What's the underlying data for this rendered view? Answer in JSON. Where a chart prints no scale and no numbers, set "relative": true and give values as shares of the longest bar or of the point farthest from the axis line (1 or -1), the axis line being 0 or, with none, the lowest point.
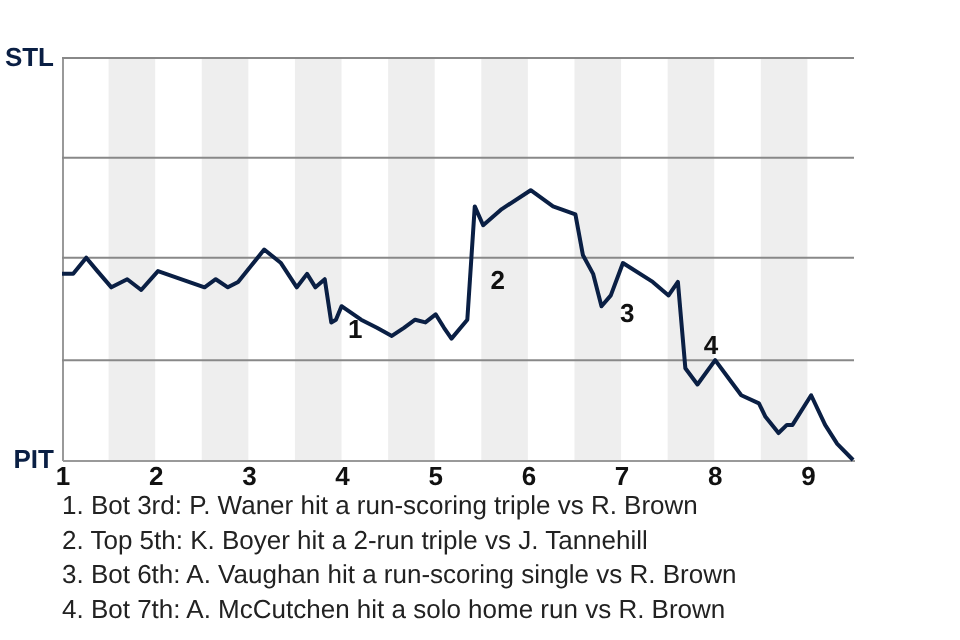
{
  "chart_data": {
    "type": "line",
    "relative": true,
    "x": [
      1,
      1.12,
      1.26,
      1.38,
      1.53,
      1.7,
      1.85,
      2.03,
      2.53,
      2.65,
      2.78,
      2.89,
      3.03,
      3.17,
      3.35,
      3.52,
      3.63,
      3.72,
      3.82,
      3.89,
      3.94,
      4,
      4.21,
      4.38,
      4.54,
      4.67,
      4.79,
      4.9,
      5.01,
      5.1,
      5.18,
      5.35,
      5.43,
      5.52,
      5.72,
      6.03,
      6.27,
      6.51,
      6.59,
      6.7,
      6.79,
      6.89,
      7.02,
      7.34,
      7.51,
      7.61,
      7.69,
      7.82,
      8.01,
      8.16,
      8.29,
      8.48,
      8.55,
      8.69,
      8.78,
      8.84,
      9.04,
      9.19,
      9.32,
      9.49
    ],
    "series": [
      {
        "color": "#0a1f44",
        "values": [
          0.69,
          0.69,
          0.75,
          0.7,
          0.64,
          0.67,
          0.63,
          0.7,
          0.64,
          0.67,
          0.64,
          0.66,
          0.72,
          0.78,
          0.73,
          0.64,
          0.69,
          0.64,
          0.67,
          0.51,
          0.52,
          0.57,
          0.52,
          0.49,
          0.46,
          0.49,
          0.52,
          0.51,
          0.54,
          0.49,
          0.45,
          0.52,
          0.94,
          0.87,
          0.93,
          1,
          0.94,
          0.91,
          0.76,
          0.69,
          0.57,
          0.61,
          0.73,
          0.66,
          0.61,
          0.66,
          0.34,
          0.28,
          0.37,
          0.3,
          0.24,
          0.21,
          0.16,
          0.1,
          0.13,
          0.13,
          0.24,
          0.13,
          0.06,
          0
        ]
      }
    ],
    "xlim": [
      1,
      9.5
    ],
    "xticks": [
      1,
      2,
      3,
      4,
      5,
      6,
      7,
      8,
      9
    ],
    "ref_lines": [
      {
        "axis": "y",
        "value": 0.37,
        "color": "#888888"
      },
      {
        "axis": "y",
        "value": 0.75,
        "color": "#888888"
      },
      {
        "axis": "y",
        "value": 1.12,
        "color": "#888888"
      },
      {
        "axis": "y",
        "value": 1.49,
        "color": "#888888"
      }
    ],
    "bands": [
      {
        "axis": "x",
        "from": 1.5,
        "to": 2,
        "color": "#eeeeee"
      },
      {
        "axis": "x",
        "from": 2.5,
        "to": 3,
        "color": "#eeeeee"
      },
      {
        "axis": "x",
        "from": 3.5,
        "to": 4,
        "color": "#eeeeee"
      },
      {
        "axis": "x",
        "from": 4.5,
        "to": 5,
        "color": "#eeeeee"
      },
      {
        "axis": "x",
        "from": 5.5,
        "to": 6,
        "color": "#eeeeee"
      },
      {
        "axis": "x",
        "from": 6.5,
        "to": 7,
        "color": "#eeeeee"
      },
      {
        "axis": "x",
        "from": 7.5,
        "to": 8,
        "color": "#eeeeee"
      },
      {
        "axis": "x",
        "from": 8.5,
        "to": 9,
        "color": "#eeeeee"
      }
    ],
    "annotations": [
      "STL",
      "PIT",
      {
        "text": "1",
        "x": 3.94,
        "y": 0.52
      },
      {
        "text": "2",
        "x": 5.47,
        "y": 0.7
      },
      {
        "text": "3",
        "x": 6.86,
        "y": 0.58
      },
      {
        "text": "4",
        "x": 7.76,
        "y": 0.46
      },
      "1. Bot 3rd: P. Waner hit a run-scoring triple vs R. Brown",
      "2. Top 5th: K. Boyer hit a 2-run triple vs J. Tannehill",
      "3. Bot 6th: A. Vaughan hit a run-scoring single vs R. Brown",
      "4. Bot 7th: A. McCutchen hit a solo home run vs R. Brown"
    ]
  }
}
